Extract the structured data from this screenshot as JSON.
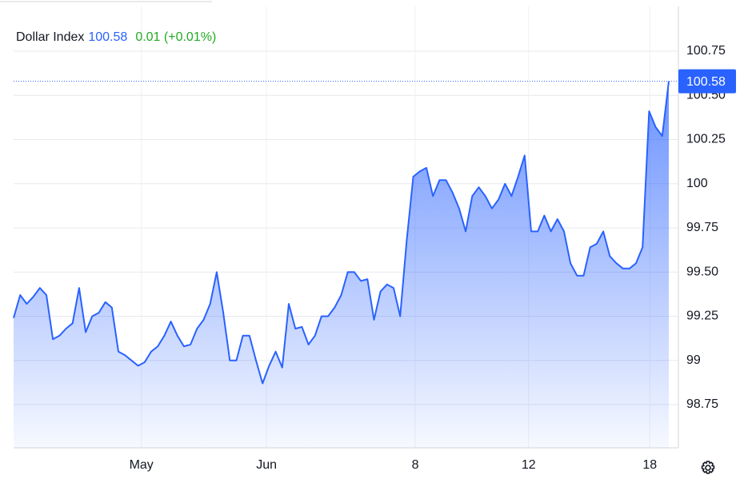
{
  "chart_data": {
    "type": "area",
    "series": [
      {
        "name": "Dollar Index",
        "color": "#2962ff",
        "values": [
          99.24,
          99.37,
          99.32,
          99.36,
          99.41,
          99.37,
          99.12,
          99.14,
          99.18,
          99.21,
          99.41,
          99.16,
          99.25,
          99.27,
          99.33,
          99.3,
          99.05,
          99.03,
          99.0,
          98.97,
          98.99,
          99.05,
          99.08,
          99.14,
          99.22,
          99.14,
          99.08,
          99.09,
          99.18,
          99.23,
          99.32,
          99.5,
          99.27,
          99.0,
          99.0,
          99.14,
          99.14,
          99.0,
          98.87,
          98.97,
          99.05,
          98.96,
          99.32,
          99.18,
          99.19,
          99.09,
          99.14,
          99.25,
          99.25,
          99.3,
          99.37,
          99.5,
          99.5,
          99.45,
          99.46,
          99.23,
          99.39,
          99.43,
          99.41,
          99.25,
          99.68,
          100.04,
          100.07,
          100.09,
          99.93,
          100.02,
          100.02,
          99.95,
          99.86,
          99.73,
          99.93,
          99.98,
          99.93,
          99.86,
          99.91,
          100.0,
          99.93,
          100.04,
          100.16,
          99.73,
          99.73,
          99.82,
          99.73,
          99.8,
          99.73,
          99.55,
          99.48,
          99.48,
          99.64,
          99.66,
          99.73,
          99.59,
          99.55,
          99.52,
          99.52,
          99.55,
          99.64,
          100.41,
          100.32,
          100.27,
          100.58
        ]
      }
    ],
    "change": "0.01 (+0.01%)",
    "change_color": "#22ab22",
    "xlim": [
      0,
      100
    ],
    "xticks": [
      {
        "value": 19.5,
        "label": "May"
      },
      {
        "value": 38.6,
        "label": "Jun"
      },
      {
        "value": 61.3,
        "label": "8"
      },
      {
        "value": 78.6,
        "label": "12"
      },
      {
        "value": 97.1,
        "label": "18"
      }
    ],
    "ylim": [
      98.5,
      101
    ],
    "yticks": [
      98.75,
      99,
      99.25,
      {
        "value": 99.5,
        "label": "99.50"
      },
      99.75,
      100,
      100.25,
      {
        "value": 100.5,
        "label": "100.50"
      },
      100.75
    ],
    "grid": true
  }
}
